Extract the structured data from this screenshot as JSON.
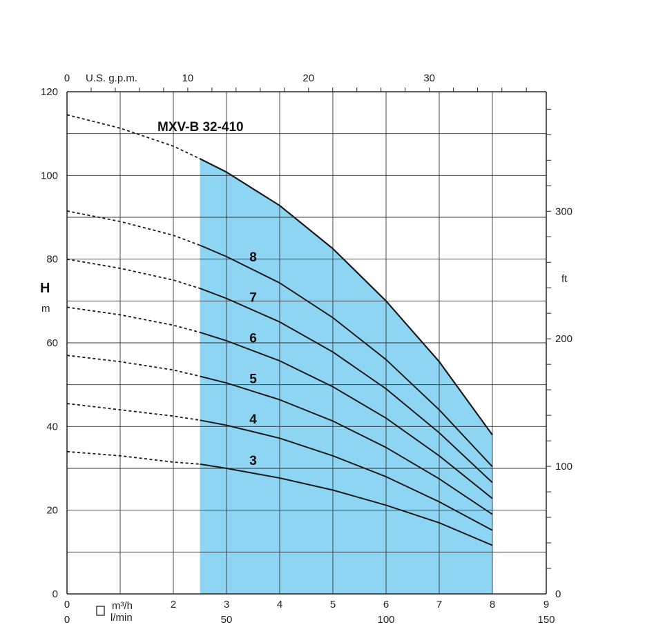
{
  "chart_data": {
    "type": "line",
    "title": "MXV-B 32-410",
    "ylabel": "H",
    "ylabel_unit": "m",
    "y_right_label": "ft",
    "x_primary_unit": "m³/h",
    "x_secondary_unit": "l/min",
    "x_top_unit": "U.S. g.p.m.",
    "xlim": [
      0,
      9
    ],
    "ylim": [
      0,
      120
    ],
    "grid": true,
    "operating_range": [
      2.5,
      8
    ],
    "range_color": "#8dd5f3",
    "x_ticks_m3h": [
      "0",
      "2",
      "3",
      "4",
      "5",
      "6",
      "7",
      "8",
      "9"
    ],
    "x_ticks_lmin": [
      {
        "value": 0,
        "label": "0"
      },
      {
        "value": 50,
        "label": "50"
      },
      {
        "value": 100,
        "label": "100"
      },
      {
        "value": 150,
        "label": "150"
      }
    ],
    "x_ticks_gpm": [
      {
        "value": 0,
        "label": "0"
      },
      {
        "value": 10,
        "label": "10"
      },
      {
        "value": 20,
        "label": "20"
      },
      {
        "value": 30,
        "label": "30"
      }
    ],
    "y_ticks_m": [
      "0",
      "20",
      "40",
      "60",
      "80",
      "100",
      "120"
    ],
    "y_ticks_ft": [
      {
        "value": 0,
        "label": "0"
      },
      {
        "value": 100,
        "label": "100"
      },
      {
        "value": 200,
        "label": "200"
      },
      {
        "value": 300,
        "label": "300"
      }
    ],
    "series": [
      {
        "name": "3",
        "points": [
          [
            0,
            34
          ],
          [
            1,
            33
          ],
          [
            2,
            31.5
          ],
          [
            2.5,
            31
          ],
          [
            3,
            30
          ],
          [
            4,
            27.7
          ],
          [
            5,
            24.8
          ],
          [
            6,
            21.2
          ],
          [
            7,
            17
          ],
          [
            8,
            11.6
          ]
        ]
      },
      {
        "name": "4",
        "points": [
          [
            0,
            45.5
          ],
          [
            1,
            44
          ],
          [
            2,
            42.5
          ],
          [
            2.5,
            41.5
          ],
          [
            3,
            40.3
          ],
          [
            4,
            37.2
          ],
          [
            5,
            33
          ],
          [
            6,
            28
          ],
          [
            7,
            22
          ],
          [
            8,
            15.2
          ]
        ]
      },
      {
        "name": "5",
        "points": [
          [
            0,
            57
          ],
          [
            1,
            55.5
          ],
          [
            2,
            53.5
          ],
          [
            2.5,
            52
          ],
          [
            3,
            50.4
          ],
          [
            4,
            46.4
          ],
          [
            5,
            41.3
          ],
          [
            6,
            35
          ],
          [
            7,
            27.5
          ],
          [
            8,
            19
          ]
        ]
      },
      {
        "name": "6",
        "points": [
          [
            0,
            68.5
          ],
          [
            1,
            66.7
          ],
          [
            2,
            64.2
          ],
          [
            2.5,
            62.5
          ],
          [
            3,
            60.5
          ],
          [
            4,
            55.7
          ],
          [
            5,
            49.5
          ],
          [
            6,
            42
          ],
          [
            7,
            33
          ],
          [
            8,
            22.8
          ]
        ]
      },
      {
        "name": "7",
        "points": [
          [
            0,
            80
          ],
          [
            1,
            77.8
          ],
          [
            2,
            75
          ],
          [
            2.5,
            73
          ],
          [
            3,
            70.6
          ],
          [
            4,
            65
          ],
          [
            5,
            57.8
          ],
          [
            6,
            49
          ],
          [
            7,
            38.5
          ],
          [
            8,
            26.6
          ]
        ]
      },
      {
        "name": "8",
        "points": [
          [
            0,
            91.5
          ],
          [
            1,
            89
          ],
          [
            2,
            85.7
          ],
          [
            2.5,
            83.3
          ],
          [
            3,
            80.6
          ],
          [
            4,
            74.3
          ],
          [
            5,
            66
          ],
          [
            6,
            56
          ],
          [
            7,
            44
          ],
          [
            8,
            30.4
          ]
        ]
      },
      {
        "name": "",
        "envelope": true,
        "points": [
          [
            0,
            114.5
          ],
          [
            1,
            111.3
          ],
          [
            2,
            107
          ],
          [
            2.5,
            104
          ],
          [
            3,
            100.8
          ],
          [
            4,
            92.8
          ],
          [
            5,
            82.5
          ],
          [
            6,
            70
          ],
          [
            7,
            55.5
          ],
          [
            8,
            38
          ]
        ]
      }
    ]
  }
}
